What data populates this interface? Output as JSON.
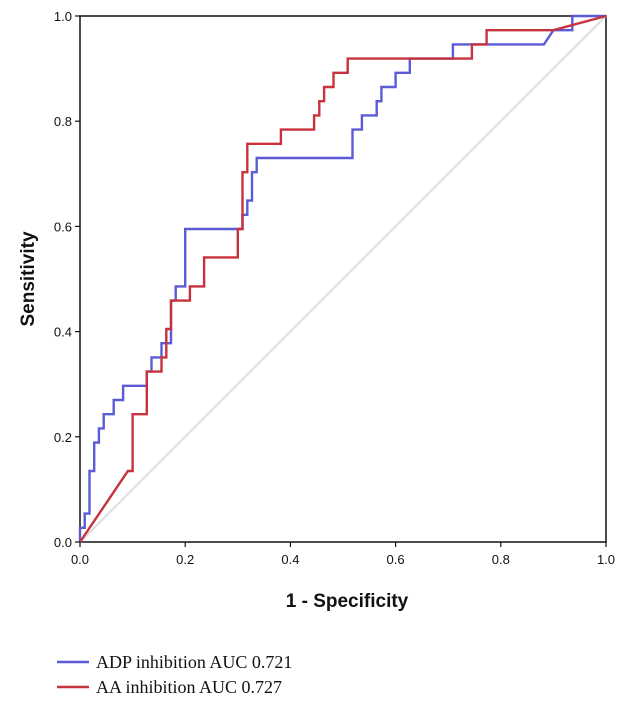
{
  "chart_data": {
    "type": "line",
    "title": "",
    "xlabel": "1 - Specificity",
    "ylabel": "Sensitivity",
    "xlim": [
      0.0,
      1.0
    ],
    "ylim": [
      0.0,
      1.0
    ],
    "x_ticks": [
      "0.0",
      "0.2",
      "0.4",
      "0.6",
      "0.8",
      "1.0"
    ],
    "y_ticks": [
      "0.0",
      "0.2",
      "0.4",
      "0.6",
      "0.8",
      "1.0"
    ],
    "grid": false,
    "legend_position": "bottom-left",
    "reference_line": {
      "name": "Reference line",
      "color": "#dddddd",
      "points": [
        [
          0.0,
          0.0
        ],
        [
          1.0,
          1.0
        ]
      ]
    },
    "series": [
      {
        "name": "ADP inhibition AUC 0.721",
        "color": "#5b5bd6",
        "points": [
          [
            0.0,
            0.0
          ],
          [
            0.0,
            0.027
          ],
          [
            0.009,
            0.027
          ],
          [
            0.009,
            0.054
          ],
          [
            0.018,
            0.054
          ],
          [
            0.018,
            0.135
          ],
          [
            0.027,
            0.135
          ],
          [
            0.027,
            0.189
          ],
          [
            0.036,
            0.189
          ],
          [
            0.036,
            0.216
          ],
          [
            0.045,
            0.216
          ],
          [
            0.045,
            0.243
          ],
          [
            0.064,
            0.243
          ],
          [
            0.064,
            0.27
          ],
          [
            0.073,
            0.27
          ],
          [
            0.082,
            0.27
          ],
          [
            0.082,
            0.297
          ],
          [
            0.127,
            0.297
          ],
          [
            0.127,
            0.324
          ],
          [
            0.136,
            0.324
          ],
          [
            0.136,
            0.351
          ],
          [
            0.155,
            0.351
          ],
          [
            0.155,
            0.378
          ],
          [
            0.173,
            0.378
          ],
          [
            0.173,
            0.459
          ],
          [
            0.182,
            0.459
          ],
          [
            0.182,
            0.486
          ],
          [
            0.2,
            0.486
          ],
          [
            0.2,
            0.595
          ],
          [
            0.309,
            0.595
          ],
          [
            0.309,
            0.622
          ],
          [
            0.318,
            0.622
          ],
          [
            0.318,
            0.649
          ],
          [
            0.327,
            0.649
          ],
          [
            0.327,
            0.703
          ],
          [
            0.336,
            0.703
          ],
          [
            0.336,
            0.73
          ],
          [
            0.518,
            0.73
          ],
          [
            0.518,
            0.784
          ],
          [
            0.536,
            0.784
          ],
          [
            0.536,
            0.811
          ],
          [
            0.564,
            0.811
          ],
          [
            0.564,
            0.838
          ],
          [
            0.573,
            0.838
          ],
          [
            0.573,
            0.865
          ],
          [
            0.6,
            0.865
          ],
          [
            0.6,
            0.892
          ],
          [
            0.627,
            0.892
          ],
          [
            0.627,
            0.919
          ],
          [
            0.709,
            0.919
          ],
          [
            0.709,
            0.946
          ],
          [
            0.882,
            0.946
          ],
          [
            0.9,
            0.973
          ],
          [
            0.936,
            0.973
          ],
          [
            0.936,
            1.0
          ],
          [
            1.0,
            1.0
          ]
        ]
      },
      {
        "name": "AA inhibition AUC 0.727",
        "color": "#c8323c",
        "points": [
          [
            0.0,
            0.0
          ],
          [
            0.091,
            0.135
          ],
          [
            0.1,
            0.135
          ],
          [
            0.1,
            0.243
          ],
          [
            0.127,
            0.243
          ],
          [
            0.127,
            0.324
          ],
          [
            0.155,
            0.324
          ],
          [
            0.155,
            0.351
          ],
          [
            0.164,
            0.351
          ],
          [
            0.164,
            0.405
          ],
          [
            0.173,
            0.405
          ],
          [
            0.173,
            0.459
          ],
          [
            0.209,
            0.459
          ],
          [
            0.209,
            0.486
          ],
          [
            0.236,
            0.486
          ],
          [
            0.236,
            0.541
          ],
          [
            0.3,
            0.541
          ],
          [
            0.3,
            0.595
          ],
          [
            0.309,
            0.595
          ],
          [
            0.309,
            0.703
          ],
          [
            0.318,
            0.703
          ],
          [
            0.318,
            0.757
          ],
          [
            0.382,
            0.757
          ],
          [
            0.382,
            0.784
          ],
          [
            0.445,
            0.784
          ],
          [
            0.445,
            0.811
          ],
          [
            0.455,
            0.811
          ],
          [
            0.455,
            0.838
          ],
          [
            0.464,
            0.838
          ],
          [
            0.464,
            0.865
          ],
          [
            0.482,
            0.865
          ],
          [
            0.482,
            0.892
          ],
          [
            0.509,
            0.892
          ],
          [
            0.509,
            0.919
          ],
          [
            0.745,
            0.919
          ],
          [
            0.745,
            0.946
          ],
          [
            0.773,
            0.946
          ],
          [
            0.773,
            0.973
          ],
          [
            0.9,
            0.973
          ],
          [
            1.0,
            1.0
          ]
        ]
      }
    ]
  }
}
